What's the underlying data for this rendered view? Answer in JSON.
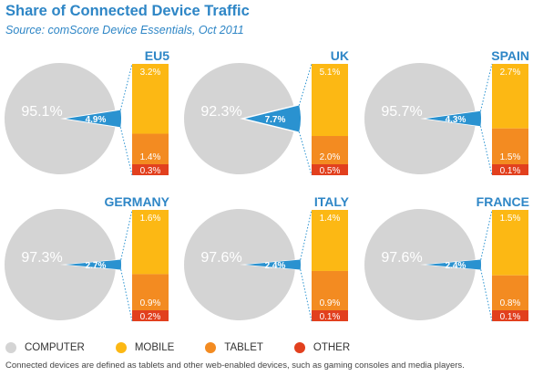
{
  "title": "Share of Connected Device Traffic",
  "subtitle": "Source: comScore Device Essentials, Oct 2011",
  "colors": {
    "computer": "#d4d4d4",
    "mobile": "#fcb814",
    "tablet": "#f38b21",
    "other": "#e2401e",
    "connected": "#2a92d0",
    "text_blue": "#2e86c6"
  },
  "legend": [
    {
      "label": "COMPUTER",
      "color": "#d4d4d4"
    },
    {
      "label": "MOBILE",
      "color": "#fcb814"
    },
    {
      "label": "TABLET",
      "color": "#f38b21"
    },
    {
      "label": "OTHER",
      "color": "#e2401e"
    }
  ],
  "footnote": "Connected devices are defined as tablets and other web-enabled devices, such as gaming consoles and media players.",
  "chart_data": [
    {
      "type": "pie",
      "title": "EU5",
      "categories": [
        "COMPUTER",
        "MOBILE",
        "TABLET",
        "OTHER"
      ],
      "values": [
        95.1,
        3.2,
        1.4,
        0.3
      ],
      "labels": {
        "computer": "95.1%",
        "connected": "4.9%",
        "mobile": "3.2%",
        "tablet": "1.4%",
        "other": "0.3%"
      }
    },
    {
      "type": "pie",
      "title": "UK",
      "categories": [
        "COMPUTER",
        "MOBILE",
        "TABLET",
        "OTHER"
      ],
      "values": [
        92.3,
        5.1,
        2.0,
        0.5
      ],
      "labels": {
        "computer": "92.3%",
        "connected": "7.7%",
        "mobile": "5.1%",
        "tablet": "2.0%",
        "other": "0.5%"
      }
    },
    {
      "type": "pie",
      "title": "SPAIN",
      "categories": [
        "COMPUTER",
        "MOBILE",
        "TABLET",
        "OTHER"
      ],
      "values": [
        95.7,
        2.7,
        1.5,
        0.1
      ],
      "labels": {
        "computer": "95.7%",
        "connected": "4.3%",
        "mobile": "2.7%",
        "tablet": "1.5%",
        "other": "0.1%"
      }
    },
    {
      "type": "pie",
      "title": "GERMANY",
      "categories": [
        "COMPUTER",
        "MOBILE",
        "TABLET",
        "OTHER"
      ],
      "values": [
        97.3,
        1.6,
        0.9,
        0.2
      ],
      "labels": {
        "computer": "97.3%",
        "connected": "2.7%",
        "mobile": "1.6%",
        "tablet": "0.9%",
        "other": "0.2%"
      }
    },
    {
      "type": "pie",
      "title": "ITALY",
      "categories": [
        "COMPUTER",
        "MOBILE",
        "TABLET",
        "OTHER"
      ],
      "values": [
        97.6,
        1.4,
        0.9,
        0.1
      ],
      "labels": {
        "computer": "97.6%",
        "connected": "2.4%",
        "mobile": "1.4%",
        "tablet": "0.9%",
        "other": "0.1%"
      }
    },
    {
      "type": "pie",
      "title": "FRANCE",
      "categories": [
        "COMPUTER",
        "MOBILE",
        "TABLET",
        "OTHER"
      ],
      "values": [
        97.6,
        1.5,
        0.8,
        0.1
      ],
      "labels": {
        "computer": "97.6%",
        "connected": "2.4%",
        "mobile": "1.5%",
        "tablet": "0.8%",
        "other": "0.1%"
      }
    }
  ]
}
